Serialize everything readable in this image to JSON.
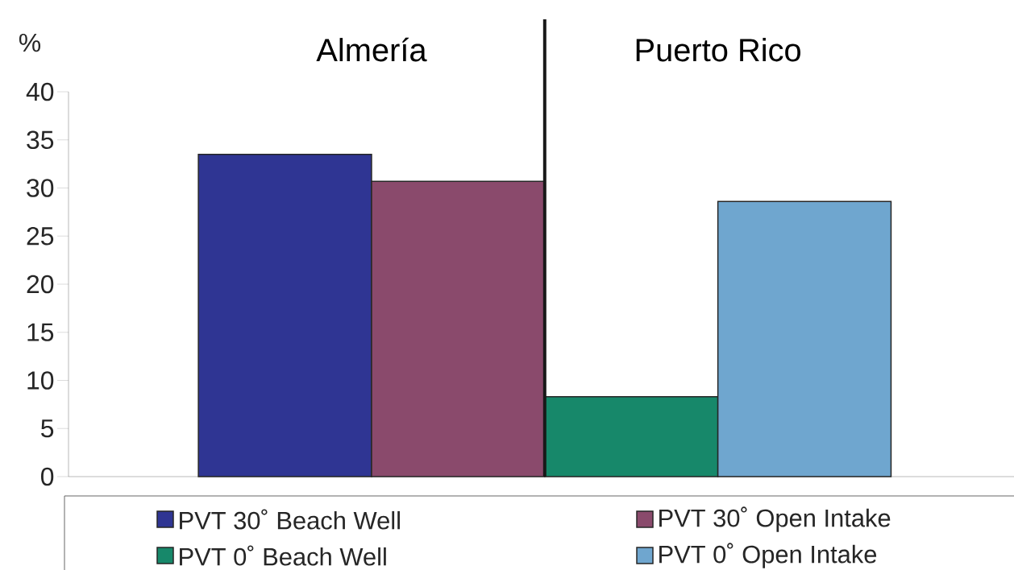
{
  "chart_data": {
    "type": "bar",
    "ylabel": "%",
    "categories": [
      null,
      null,
      null,
      null
    ],
    "series": [
      {
        "name": "PVT 30˚ Beach Well",
        "color": "#2f3593",
        "values": [
          33.5,
          null,
          null,
          null
        ]
      },
      {
        "name": "PVT 30˚ Open Intake",
        "color": "#8a4a6c",
        "values": [
          null,
          30.7,
          null,
          null
        ]
      },
      {
        "name": "PVT 0˚ Beach Well",
        "color": "#17886a",
        "values": [
          null,
          null,
          8.3,
          null
        ]
      },
      {
        "name": "PVT 0˚ Open Intake",
        "color": "#6fa6cf",
        "values": [
          null,
          null,
          null,
          28.6
        ]
      }
    ],
    "ylim": [
      0,
      40
    ],
    "yticks": [
      0,
      5,
      10,
      15,
      20,
      25,
      30,
      35,
      40
    ],
    "annotations": [
      "Almería",
      "Puerto Rico"
    ],
    "legend": "bottom",
    "grid": false
  }
}
